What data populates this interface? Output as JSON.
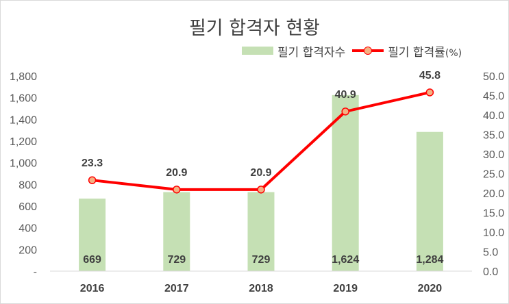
{
  "chart_data": {
    "type": "bar",
    "title": "필기 합격자 현황",
    "categories": [
      "2016",
      "2017",
      "2018",
      "2019",
      "2020"
    ],
    "series": [
      {
        "name": "필기 합격자수",
        "type": "bar",
        "axis": "left",
        "values": [
          669,
          729,
          729,
          1624,
          1284
        ],
        "labels": [
          "669",
          "729",
          "729",
          "1,624",
          "1,284"
        ],
        "color": "#c5e0b4"
      },
      {
        "name": "필기 합격률",
        "name_suffix": "(%)",
        "type": "line",
        "axis": "right",
        "values": [
          23.3,
          20.9,
          20.9,
          40.9,
          45.8
        ],
        "labels": [
          "23.3",
          "20.9",
          "20.9",
          "40.9",
          "45.8"
        ],
        "color": "#ff0000",
        "marker_fill": "#f4b183"
      }
    ],
    "y_left": {
      "ylim": [
        0,
        1800
      ],
      "tick_labels": [
        "-",
        "200",
        "400",
        "600",
        "800",
        "1,000",
        "1,200",
        "1,400",
        "1,600",
        "1,800"
      ]
    },
    "y_right": {
      "ylim": [
        0,
        50
      ],
      "tick_labels": [
        "0.0",
        "5.0",
        "10.0",
        "15.0",
        "20.0",
        "25.0",
        "30.0",
        "35.0",
        "40.0",
        "45.0",
        "50.0"
      ]
    },
    "xlabel": "",
    "ylabel": "",
    "grid": false,
    "legend": "top-right"
  }
}
